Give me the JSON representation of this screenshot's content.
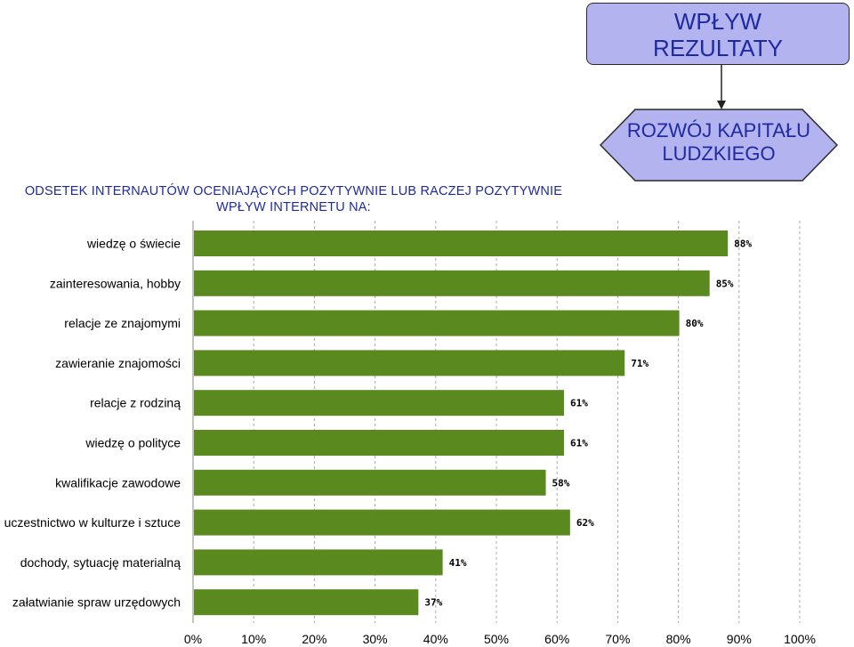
{
  "header_box": {
    "line1": "WPŁYW",
    "line2": "REZULTATY"
  },
  "hex_box": {
    "line1": "ROZWÓJ KAPITAŁU",
    "line2": "LUDZKIEGO"
  },
  "title": {
    "line1": "ODSETEK INTERNAUTÓW OCENIAJĄCYCH POZYTYWNIE LUB RACZEJ POZYTYWNIE",
    "line2": "WPŁYW INTERNETU NA:"
  },
  "colors": {
    "bar": "#5a8a1f",
    "text_blue": "#1f2aa0",
    "box_fill": "#b3b3f0"
  },
  "chart_data": {
    "type": "bar",
    "orientation": "horizontal",
    "categories": [
      "wiedzę o świecie",
      "zainteresowania, hobby",
      "relacje ze znajomymi",
      "zawieranie  znajomości",
      "relacje z rodziną",
      "wiedzę o polityce",
      "kwalifikacje zawodowe",
      "uczestnictwo w kulturze i sztuce",
      "dochody, sytuację materialną",
      "załatwianie spraw urzędowych"
    ],
    "values": [
      88,
      85,
      80,
      71,
      61,
      61,
      58,
      62,
      41,
      37
    ],
    "value_labels": [
      "88%",
      "85%",
      "80%",
      "71%",
      "61%",
      "61%",
      "58%",
      "62%",
      "41%",
      "37%"
    ],
    "xlim": [
      0,
      100
    ],
    "ticks": [
      "0%",
      "10%",
      "20%",
      "30%",
      "40%",
      "50%",
      "60%",
      "70%",
      "80%",
      "90%",
      "100%"
    ],
    "grid": "dashed-vertical",
    "title": "ODSETEK INTERNAUTÓW OCENIAJĄCYCH POZYTYWNIE LUB RACZEJ POZYTYWNIE WPŁYW INTERNETU NA:"
  }
}
